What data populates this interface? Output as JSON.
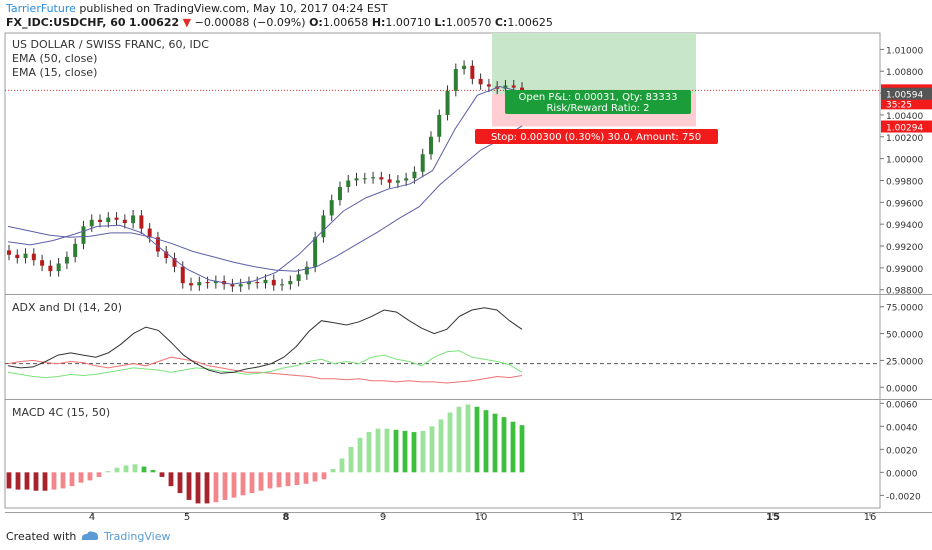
{
  "header": {
    "author": "TarrierFuture",
    "published": " published on TradingView.com, May 10, 2017 04:24 EST",
    "symbol": "FX_IDC:USDCHF, 60",
    "last": "1.00622",
    "change": "−0.00088 (−0.09%)",
    "o_label": "O:",
    "o": "1.00658",
    "h_label": "H:",
    "h": "1.00710",
    "l_label": "L:",
    "l": "1.00570",
    "c_label": "C:",
    "c": "1.00625"
  },
  "footer": {
    "created": "Created with",
    "brand": "TradingView"
  },
  "colors": {
    "up": "#2e7d32",
    "down": "#b71c1c",
    "ema_line": "#5c5fa8",
    "adx": "#333333",
    "di_plus": "#7be37b",
    "di_minus": "#f07272",
    "macd_up_strong": "#3dbf3d",
    "macd_up_weak": "#9be29b",
    "macd_dn_strong": "#a8242c",
    "macd_dn_weak": "#f2868b",
    "profit_zone": "#c8e6c9",
    "loss_zone": "#ffcdd2",
    "price_line": "#e53935"
  },
  "chart_data": [
    {
      "type": "line",
      "title": "US DOLLAR / SWISS FRANC, 60, IDC",
      "legend": [
        "EMA (50, close)",
        "EMA (15, close)"
      ],
      "x_ticks": [
        "4",
        "5",
        "8",
        "9",
        "10",
        "11",
        "12",
        "15",
        "16"
      ],
      "y_ticks": [
        "1.01000",
        "1.00800",
        "1.00600",
        "1.00400",
        "1.00200",
        "1.00000",
        "0.99800",
        "0.99600",
        "0.99400",
        "0.99200",
        "0.99000",
        "0.98800"
      ],
      "ylim": [
        0.9877,
        1.0115
      ],
      "price_labels": {
        "last": "1.00625",
        "countdown": "35:25",
        "ema": "1.00594",
        "stop": "1.00294"
      },
      "closes": [
        0.9912,
        0.9909,
        0.9913,
        0.9907,
        0.9902,
        0.9897,
        0.9904,
        0.991,
        0.9922,
        0.9938,
        0.9944,
        0.9942,
        0.9946,
        0.9944,
        0.9941,
        0.9948,
        0.9936,
        0.9928,
        0.9915,
        0.9909,
        0.9901,
        0.9886,
        0.9884,
        0.9887,
        0.9886,
        0.9888,
        0.9885,
        0.9883,
        0.9885,
        0.9887,
        0.9886,
        0.9889,
        0.9884,
        0.9885,
        0.9888,
        0.9894,
        0.9901,
        0.9928,
        0.9948,
        0.9962,
        0.9974,
        0.998,
        0.9982,
        0.9982,
        0.9983,
        0.9981,
        0.9978,
        0.998,
        0.9982,
        0.9988,
        1.0004,
        1.002,
        1.004,
        1.0062,
        1.0082,
        1.0085,
        1.0073,
        1.0068,
        1.0066,
        1.0064,
        1.0067,
        1.0065,
        1.0062
      ],
      "ema50": [
        0.9938,
        0.9934,
        0.993,
        0.9928,
        0.9929,
        0.9932,
        0.9932,
        0.9928,
        0.9922,
        0.9915,
        0.991,
        0.9905,
        0.9901,
        0.9898,
        0.9897,
        0.9901,
        0.9911,
        0.9922,
        0.9933,
        0.9945,
        0.9956,
        0.9976,
        0.9992,
        1.0008,
        1.0018,
        1.003
      ],
      "ema15": [
        0.9924,
        0.9921,
        0.9925,
        0.9931,
        0.9938,
        0.9939,
        0.9932,
        0.9915,
        0.9899,
        0.9889,
        0.9885,
        0.9888,
        0.9896,
        0.9912,
        0.9932,
        0.9952,
        0.9964,
        0.9972,
        0.9977,
        0.9989,
        1.0027,
        1.0058,
        1.0066,
        1.0061
      ],
      "position": {
        "pnl_text": "Open P&L: 0.00031, Qty: 83333",
        "rr_text": "Risk/Reward Ratio: 2",
        "stop_text": "Stop: 0.00300 (0.30%) 30.0, Amount: 750",
        "target": 1.0115,
        "entry": 1.00594,
        "stop": 1.00294
      }
    },
    {
      "type": "line",
      "title": "ADX and DI (14, 20)",
      "y_ticks": [
        "75.0000",
        "50.0000",
        "25.0000",
        "0.0000"
      ],
      "ylim": [
        -10,
        85
      ],
      "hline": 22,
      "adx": [
        20,
        18,
        19,
        24,
        30,
        32,
        30,
        28,
        32,
        40,
        50,
        56,
        53,
        42,
        30,
        22,
        16,
        13,
        14,
        17,
        19,
        22,
        28,
        38,
        52,
        62,
        60,
        58,
        61,
        66,
        72,
        70,
        62,
        55,
        50,
        54,
        66,
        72,
        74,
        72,
        62,
        54
      ],
      "di_plus": [
        14,
        12,
        10,
        9,
        10,
        12,
        11,
        12,
        14,
        16,
        18,
        17,
        16,
        14,
        16,
        18,
        17,
        15,
        14,
        12,
        13,
        15,
        18,
        20,
        24,
        26,
        22,
        24,
        22,
        28,
        30,
        26,
        24,
        20,
        28,
        33,
        34,
        28,
        26,
        24,
        21,
        14
      ],
      "di_minus": [
        22,
        24,
        25,
        23,
        22,
        24,
        23,
        20,
        18,
        20,
        22,
        20,
        24,
        28,
        26,
        24,
        20,
        18,
        16,
        14,
        14,
        13,
        12,
        11,
        10,
        8,
        8,
        7,
        8,
        6,
        6,
        5,
        6,
        5,
        5,
        4,
        5,
        6,
        8,
        10,
        9,
        11
      ]
    },
    {
      "type": "bar",
      "title": "MACD 4C (15, 50)",
      "y_ticks": [
        "0.0060",
        "0.0040",
        "0.0020",
        "0.0000",
        "-0.0020"
      ],
      "ylim": [
        -0.0031,
        0.0062
      ],
      "values": [
        -0.0014,
        -0.0015,
        -0.0015,
        -0.0016,
        -0.0016,
        -0.0015,
        -0.0014,
        -0.0012,
        -0.0009,
        -0.0007,
        -0.0004,
        0.0001,
        0.0004,
        0.0006,
        0.0007,
        0.0005,
        0.0002,
        -0.0004,
        -0.0012,
        -0.0018,
        -0.0024,
        -0.0027,
        -0.0027,
        -0.0026,
        -0.0024,
        -0.0022,
        -0.002,
        -0.0018,
        -0.0016,
        -0.0014,
        -0.0013,
        -0.0012,
        -0.0011,
        -0.001,
        -0.0008,
        -0.0006,
        0.0003,
        0.0012,
        0.0022,
        0.003,
        0.0035,
        0.0038,
        0.0038,
        0.0037,
        0.0036,
        0.0035,
        0.0036,
        0.004,
        0.0046,
        0.0052,
        0.0057,
        0.0059,
        0.0057,
        0.0054,
        0.0051,
        0.0048,
        0.0044,
        0.0041
      ]
    }
  ]
}
